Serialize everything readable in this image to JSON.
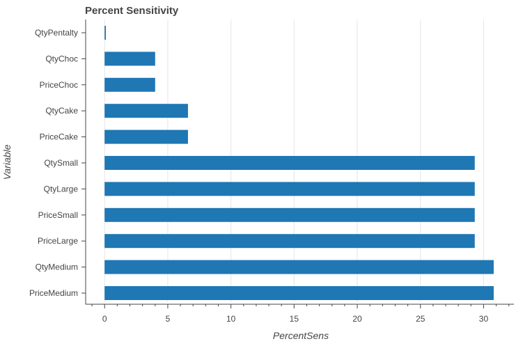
{
  "chart_data": {
    "type": "bar",
    "orientation": "horizontal",
    "title": "Percent Sensitivity",
    "xlabel": "PercentSens",
    "ylabel": "Variable",
    "categories": [
      "QtyPentalty",
      "QtyChoc",
      "PriceChoc",
      "QtyCake",
      "PriceCake",
      "QtySmall",
      "QtyLarge",
      "PriceSmall",
      "PriceLarge",
      "QtyMedium",
      "PriceMedium"
    ],
    "values": [
      0.1,
      4.0,
      4.0,
      6.6,
      6.6,
      29.3,
      29.3,
      29.3,
      29.3,
      30.8,
      30.8
    ],
    "xlim": [
      -1.5,
      32.4
    ],
    "xticks": [
      0,
      5,
      10,
      15,
      20,
      25,
      30
    ],
    "grid": true,
    "bar_color": "#1f77b4",
    "grid_color": "#e5e5e5",
    "axis_color": "#444444"
  }
}
